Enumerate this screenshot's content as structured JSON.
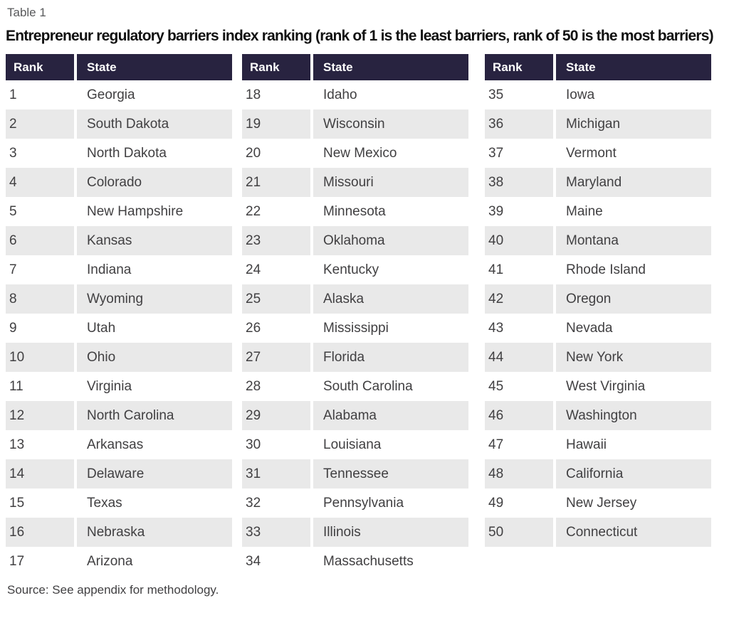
{
  "label": "Table 1",
  "title": "Entrepreneur regulatory barriers index ranking (rank of 1 is the least barriers, rank of 50 is the most barriers)",
  "headers": {
    "rank": "Rank",
    "state": "State"
  },
  "groups": [
    [
      {
        "rank": "1",
        "state": "Georgia"
      },
      {
        "rank": "2",
        "state": "South Dakota"
      },
      {
        "rank": "3",
        "state": "North Dakota"
      },
      {
        "rank": "4",
        "state": "Colorado"
      },
      {
        "rank": "5",
        "state": "New Hampshire"
      },
      {
        "rank": "6",
        "state": "Kansas"
      },
      {
        "rank": "7",
        "state": "Indiana"
      },
      {
        "rank": "8",
        "state": "Wyoming"
      },
      {
        "rank": "9",
        "state": "Utah"
      },
      {
        "rank": "10",
        "state": "Ohio"
      },
      {
        "rank": "11",
        "state": "Virginia"
      },
      {
        "rank": "12",
        "state": "North Carolina"
      },
      {
        "rank": "13",
        "state": "Arkansas"
      },
      {
        "rank": "14",
        "state": "Delaware"
      },
      {
        "rank": "15",
        "state": "Texas"
      },
      {
        "rank": "16",
        "state": "Nebraska"
      },
      {
        "rank": "17",
        "state": "Arizona"
      }
    ],
    [
      {
        "rank": "18",
        "state": "Idaho"
      },
      {
        "rank": "19",
        "state": "Wisconsin"
      },
      {
        "rank": "20",
        "state": "New Mexico"
      },
      {
        "rank": "21",
        "state": "Missouri"
      },
      {
        "rank": "22",
        "state": "Minnesota"
      },
      {
        "rank": "23",
        "state": "Oklahoma"
      },
      {
        "rank": "24",
        "state": "Kentucky"
      },
      {
        "rank": "25",
        "state": "Alaska"
      },
      {
        "rank": "26",
        "state": "Mississippi"
      },
      {
        "rank": "27",
        "state": "Florida"
      },
      {
        "rank": "28",
        "state": "South Carolina"
      },
      {
        "rank": "29",
        "state": "Alabama"
      },
      {
        "rank": "30",
        "state": "Louisiana"
      },
      {
        "rank": "31",
        "state": "Tennessee"
      },
      {
        "rank": "32",
        "state": "Pennsylvania"
      },
      {
        "rank": "33",
        "state": "Illinois"
      },
      {
        "rank": "34",
        "state": "Massachusetts"
      }
    ],
    [
      {
        "rank": "35",
        "state": "Iowa"
      },
      {
        "rank": "36",
        "state": "Michigan"
      },
      {
        "rank": "37",
        "state": "Vermont"
      },
      {
        "rank": "38",
        "state": "Maryland"
      },
      {
        "rank": "39",
        "state": "Maine"
      },
      {
        "rank": "40",
        "state": "Montana"
      },
      {
        "rank": "41",
        "state": "Rhode Island"
      },
      {
        "rank": "42",
        "state": "Oregon"
      },
      {
        "rank": "43",
        "state": "Nevada"
      },
      {
        "rank": "44",
        "state": "New York"
      },
      {
        "rank": "45",
        "state": "West Virginia"
      },
      {
        "rank": "46",
        "state": "Washington"
      },
      {
        "rank": "47",
        "state": "Hawaii"
      },
      {
        "rank": "48",
        "state": "California"
      },
      {
        "rank": "49",
        "state": "New Jersey"
      },
      {
        "rank": "50",
        "state": "Connecticut"
      }
    ]
  ],
  "source": "Source: See appendix for methodology.",
  "colors": {
    "header_bg": "#282340",
    "header_text": "#ffffff",
    "row_alt": "#e9e9e9",
    "body_text": "#414042",
    "label_text": "#58595b",
    "title_text": "#111111",
    "source_text": "#414042"
  }
}
